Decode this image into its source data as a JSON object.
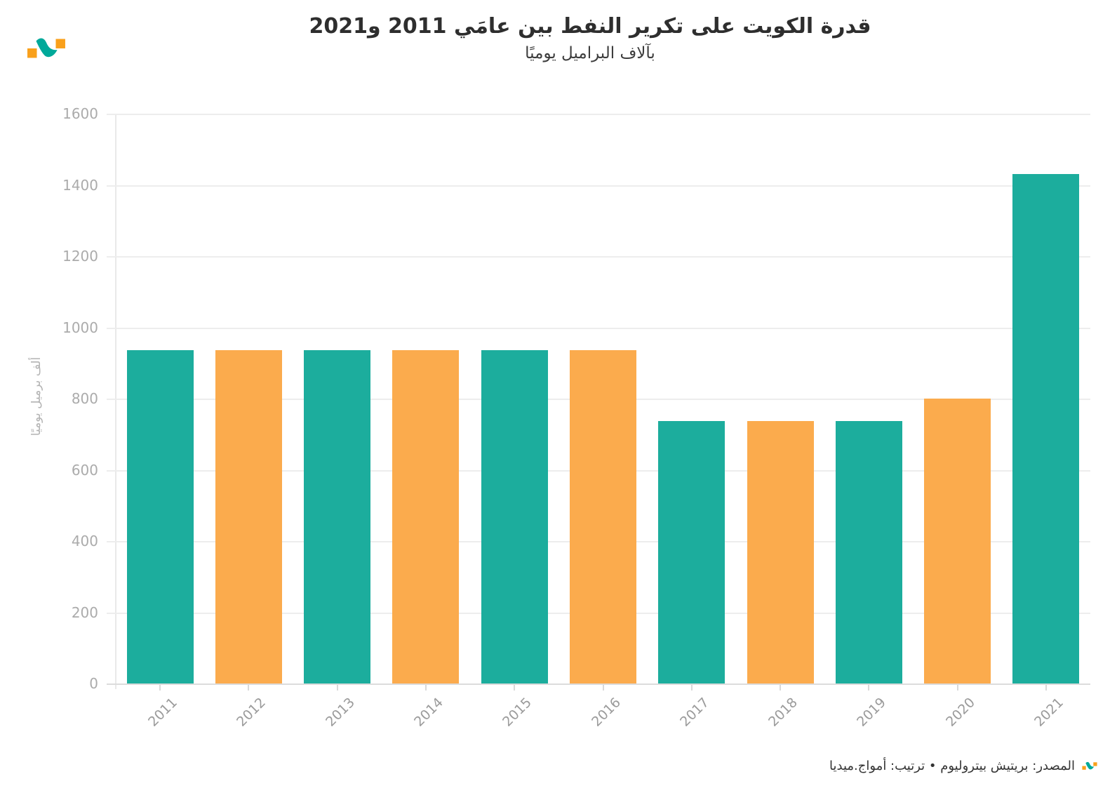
{
  "header": {
    "title": "قدرة الكويت على تكرير النفط بين عامَي 2011 و2021",
    "subtitle": "بآلاف البراميل يوميًا"
  },
  "chart_data": {
    "type": "bar",
    "title": "قدرة الكويت على تكرير النفط بين عامَي 2011 و2021",
    "subtitle": "بآلاف البراميل يوميًا",
    "categories": [
      "2011",
      "2012",
      "2013",
      "2014",
      "2015",
      "2016",
      "2017",
      "2018",
      "2019",
      "2020",
      "2021"
    ],
    "values": [
      936,
      936,
      936,
      936,
      936,
      936,
      736,
      736,
      736,
      800,
      1430
    ],
    "bar_colors": [
      "#1CAD9D",
      "#FBAB4D",
      "#1CAD9D",
      "#FBAB4D",
      "#1CAD9D",
      "#FBAB4D",
      "#1CAD9D",
      "#FBAB4D",
      "#1CAD9D",
      "#FBAB4D",
      "#1CAD9D"
    ],
    "xlabel": "",
    "ylabel": "ألف برميل يوميًا",
    "ylim": [
      0,
      1600
    ],
    "ytick_step": 200,
    "yticks": [
      0,
      200,
      400,
      600,
      800,
      1000,
      1200,
      1400,
      1600
    ],
    "grid": "horizontal",
    "legend": false
  },
  "colors": {
    "teal": "#1CAD9D",
    "orange": "#FBAB4D",
    "logo_orange": "#F9A01B",
    "logo_teal": "#00A99A",
    "grid": "#ededed",
    "axis": "#dcdcdc",
    "tick_label": "#ababab"
  },
  "footer": {
    "text": "المصدر: بريتيش بيتروليوم • ترتيب: أمواج.ميديا"
  },
  "icons": {
    "brand_logo": "amwaj-wave-logo"
  }
}
